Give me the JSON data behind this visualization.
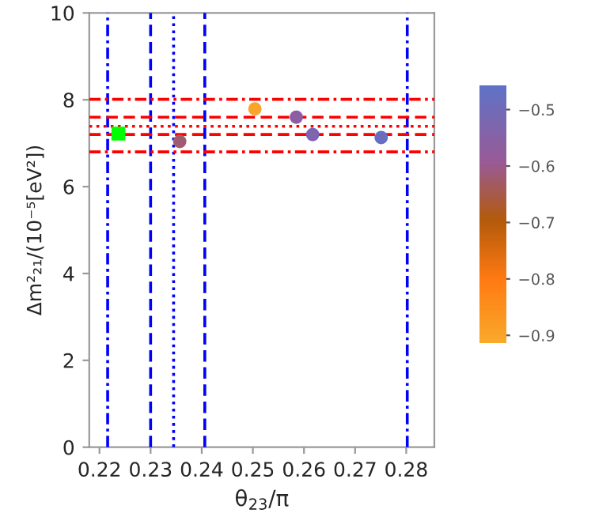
{
  "chart_data": {
    "type": "scatter",
    "xlabel": "θ$_{23}$/π",
    "ylabel": "Δm²₂₁/(10⁻⁵[eV²])",
    "xlim": [
      0.218,
      0.2855
    ],
    "xticks": [
      0.22,
      0.23,
      0.24,
      0.25,
      0.26,
      0.27,
      0.28
    ],
    "ylim": [
      0,
      10
    ],
    "yticks": [
      0,
      2,
      4,
      6,
      8,
      10
    ],
    "clim": [
      -0.915,
      -0.457
    ],
    "cticks": [
      {
        "value": -0.5,
        "label": "−0.5"
      },
      {
        "value": -0.6,
        "label": "−0.6"
      },
      {
        "value": -0.7,
        "label": "−0.7"
      },
      {
        "value": -0.8,
        "label": "−0.8"
      },
      {
        "value": -0.9,
        "label": "−0.9"
      }
    ],
    "grid": false,
    "legend": false,
    "series": [
      {
        "marker": "square",
        "color": "#00ff00",
        "x": [
          0.2237
        ],
        "values": [
          7.22
        ]
      },
      {
        "marker": "circle",
        "x": [
          0.2357,
          0.2504,
          0.2585,
          0.2617,
          0.2751
        ],
        "values": [
          7.04,
          7.79,
          7.6,
          7.2,
          7.13
        ],
        "cvalues": [
          -0.62,
          -0.9,
          -0.56,
          -0.53,
          -0.49
        ],
        "colors": [
          "#a05f6a",
          "#f5a532",
          "#8f5aa6",
          "#7a62b8",
          "#5f70c8"
        ]
      }
    ],
    "ref_lines": [
      {
        "axis": "x",
        "value": 0.2216,
        "color": "#0000ff",
        "line_style": "dashdot"
      },
      {
        "axis": "x",
        "value": 0.23,
        "color": "#0000ff",
        "line_style": "dashed"
      },
      {
        "axis": "x",
        "value": 0.2345,
        "color": "#0000ff",
        "line_style": "dotted"
      },
      {
        "axis": "x",
        "value": 0.2406,
        "color": "#0000ff",
        "line_style": "dashed"
      },
      {
        "axis": "x",
        "value": 0.2802,
        "color": "#0000ff",
        "line_style": "dashdot"
      },
      {
        "axis": "y",
        "value": 8.01,
        "color": "#ff0000",
        "line_style": "dashdot"
      },
      {
        "axis": "y",
        "value": 7.6,
        "color": "#ff0000",
        "line_style": "dashed"
      },
      {
        "axis": "y",
        "value": 7.39,
        "color": "#ff0000",
        "line_style": "dotted"
      },
      {
        "axis": "y",
        "value": 7.2,
        "color": "#ff0000",
        "line_style": "dashed"
      },
      {
        "axis": "y",
        "value": 6.8,
        "color": "#ff0000",
        "line_style": "dashdot"
      }
    ]
  }
}
